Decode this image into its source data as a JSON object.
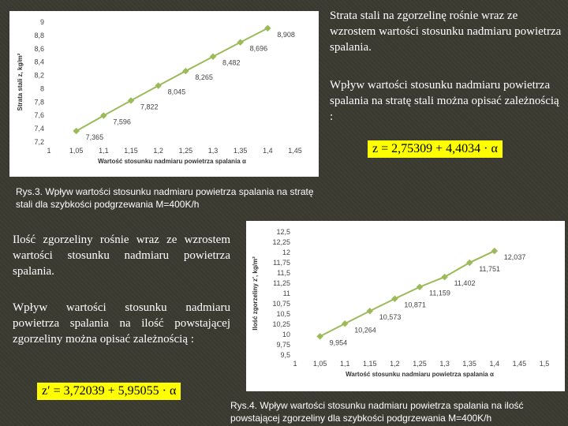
{
  "texts": {
    "t1": "Strata stali na zgorzelinę rośnie wraz ze wzrostem wartości stosunku nadmiaru powietrza spalania.",
    "t2": "Wpływ wartości stosunku nadmiaru powietrza spalania na stratę stali można opisać zależnością :",
    "t3": "Ilość zgorzeliny rośnie wraz ze wzrostem wartości stosunku nadmiaru powietrza spalania.",
    "t4": "Wpływ wartości stosunku nadmiaru powietrza spalania na ilość powstającej zgorzeliny można opisać zależnością :",
    "eq1": "z = 2,75309 + 4,4034 · α",
    "eq2": "z′ = 3,72039 + 5,95055 · α",
    "cap1": "Rys.3. Wpływ wartości stosunku nadmiaru powietrza spalania na stratę stali dla szybkości podgrzewania M=400K/h",
    "cap2": "Rys.4. Wpływ wartości stosunku nadmiaru powietrza spalania na ilość powstającej zgorzeliny dla szybkości podgrzewania M=400K/h"
  },
  "chart_data": [
    {
      "type": "line",
      "x": [
        1.05,
        1.1,
        1.15,
        1.2,
        1.25,
        1.3,
        1.35,
        1.4
      ],
      "values": [
        7.365,
        7.596,
        7.822,
        8.045,
        8.265,
        8.482,
        8.696,
        8.908
      ],
      "data_labels": [
        "7,365",
        "7,596",
        "7,822",
        "8,045",
        "8,265",
        "8,482",
        "8,696",
        "8,908"
      ],
      "xticks": [
        1,
        1.05,
        1.1,
        1.15,
        1.2,
        1.25,
        1.3,
        1.35,
        1.4,
        1.45
      ],
      "xtick_labels": [
        "1",
        "1,05",
        "1,1",
        "1,15",
        "1,2",
        "1,25",
        "1,3",
        "1,35",
        "1,4",
        "1,45"
      ],
      "yticks": [
        7.2,
        7.4,
        7.6,
        7.8,
        8,
        8.2,
        8.4,
        8.6,
        8.8,
        9
      ],
      "ytick_labels": [
        "7,2",
        "7,4",
        "7,6",
        "7,8",
        "8",
        "8,2",
        "8,4",
        "8,6",
        "8,8",
        "9"
      ],
      "xlim": [
        1,
        1.45
      ],
      "ylim": [
        7.2,
        9
      ],
      "xlabel": "Wartość stosunku nadmiaru powietrza spalania α",
      "ylabel": "Strata stali z, kg/m²",
      "series_color": "#9bbb59",
      "grid": false
    },
    {
      "type": "line",
      "x": [
        1.05,
        1.1,
        1.15,
        1.2,
        1.25,
        1.3,
        1.35,
        1.4
      ],
      "values": [
        9.954,
        10.264,
        10.573,
        10.871,
        11.159,
        11.402,
        11.751,
        12.037
      ],
      "data_labels": [
        "9,954",
        "10,264",
        "10,573",
        "10,871",
        "11,159",
        "11,402",
        "11,751",
        "12,037"
      ],
      "xticks": [
        1,
        1.05,
        1.1,
        1.15,
        1.2,
        1.25,
        1.3,
        1.35,
        1.4,
        1.45,
        1.5
      ],
      "xtick_labels": [
        "1",
        "1,05",
        "1,1",
        "1,15",
        "1,2",
        "1,25",
        "1,3",
        "1,35",
        "1,4",
        "1,45",
        "1,5"
      ],
      "yticks": [
        9.5,
        9.75,
        10,
        10.25,
        10.5,
        10.75,
        11,
        11.25,
        11.5,
        11.75,
        12,
        12.25,
        12.5
      ],
      "ytick_labels": [
        "9,5",
        "9,75",
        "10",
        "10,25",
        "10,5",
        "10,75",
        "11",
        "11,25",
        "11,5",
        "11,75",
        "12",
        "12,25",
        "12,5"
      ],
      "xlim": [
        1,
        1.5
      ],
      "ylim": [
        9.5,
        12.5
      ],
      "xlabel": "Wartość stosunku nadmiaru powietrza spalania α",
      "ylabel": "Ilość zgorzeliny z′, kg/m²",
      "series_color": "#9bbb59",
      "grid": false
    }
  ]
}
